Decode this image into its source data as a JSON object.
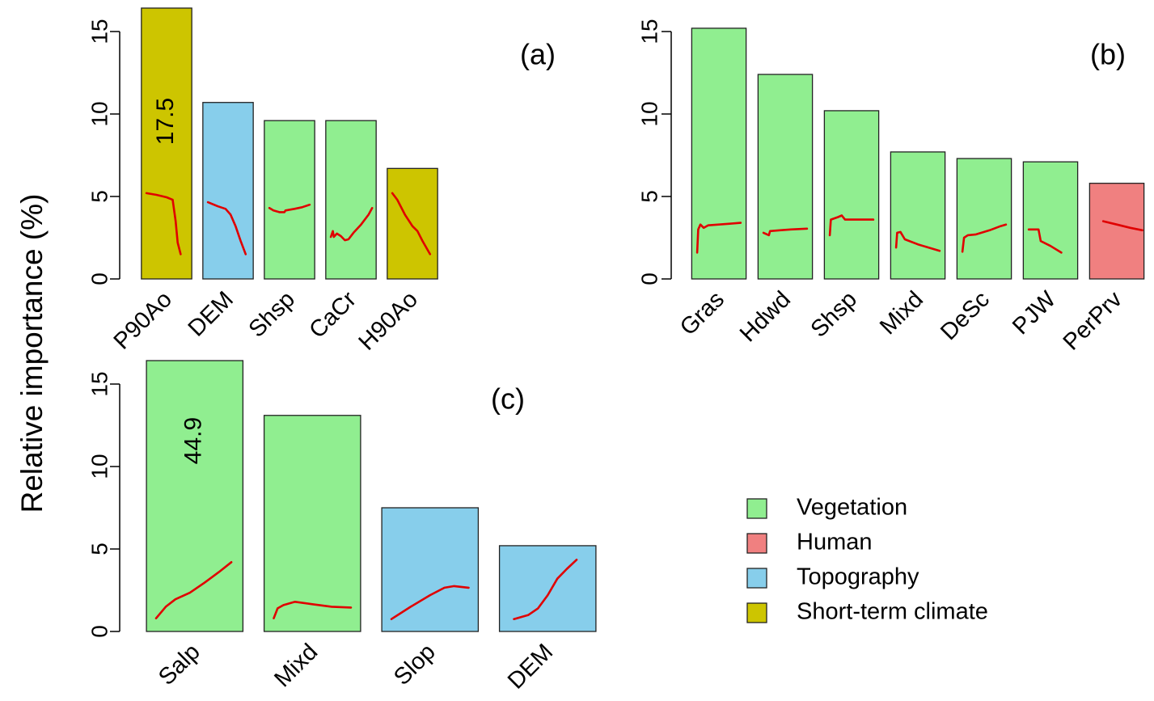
{
  "ylabel": "Relative importance (%)",
  "colors": {
    "Vegetation": "#90EE90",
    "Human": "#F08080",
    "Topography": "#87CEEB",
    "Short-term climate": "#CDC500",
    "response_line": "#E00000"
  },
  "legend": {
    "placement": "bottom-right",
    "items": [
      {
        "label": "Vegetation",
        "color": "#90EE90"
      },
      {
        "label": "Human",
        "color": "#F08080"
      },
      {
        "label": "Topography",
        "color": "#87CEEB"
      },
      {
        "label": "Short-term climate",
        "color": "#CDC500"
      }
    ]
  },
  "chart_data": [
    {
      "type": "bar",
      "panel_label": "(a)",
      "categories": [
        "P90Ao",
        "DEM",
        "Shsp",
        "CaCr",
        "H90Ao"
      ],
      "values": [
        17.5,
        10.7,
        9.6,
        9.6,
        6.7
      ],
      "groups": [
        "Short-term climate",
        "Topography",
        "Vegetation",
        "Vegetation",
        "Short-term climate"
      ],
      "value_labels": [
        "17.5",
        "",
        "",
        "",
        ""
      ],
      "ylim": [
        0,
        16.5
      ],
      "yticks": [
        0,
        5,
        10,
        15
      ],
      "curves": [
        [
          [
            0.1,
            5.2
          ],
          [
            0.3,
            5.1
          ],
          [
            0.5,
            4.95
          ],
          [
            0.62,
            4.8
          ],
          [
            0.68,
            3.5
          ],
          [
            0.72,
            2.2
          ],
          [
            0.78,
            1.5
          ]
        ],
        [
          [
            0.1,
            4.65
          ],
          [
            0.3,
            4.4
          ],
          [
            0.45,
            4.25
          ],
          [
            0.55,
            3.9
          ],
          [
            0.65,
            3.2
          ],
          [
            0.75,
            2.3
          ],
          [
            0.85,
            1.5
          ]
        ],
        [
          [
            0.1,
            4.3
          ],
          [
            0.18,
            4.15
          ],
          [
            0.3,
            4.05
          ],
          [
            0.4,
            4.05
          ],
          [
            0.42,
            4.15
          ],
          [
            0.6,
            4.25
          ],
          [
            0.75,
            4.35
          ],
          [
            0.9,
            4.5
          ]
        ],
        [
          [
            0.1,
            2.55
          ],
          [
            0.14,
            2.9
          ],
          [
            0.16,
            2.55
          ],
          [
            0.22,
            2.75
          ],
          [
            0.3,
            2.6
          ],
          [
            0.38,
            2.35
          ],
          [
            0.45,
            2.4
          ],
          [
            0.55,
            2.8
          ],
          [
            0.7,
            3.3
          ],
          [
            0.85,
            3.9
          ],
          [
            0.92,
            4.3
          ]
        ],
        [
          [
            0.1,
            5.2
          ],
          [
            0.2,
            4.8
          ],
          [
            0.35,
            3.9
          ],
          [
            0.5,
            3.2
          ],
          [
            0.6,
            2.9
          ],
          [
            0.7,
            2.3
          ],
          [
            0.85,
            1.5
          ]
        ]
      ]
    },
    {
      "type": "bar",
      "panel_label": "(b)",
      "categories": [
        "Gras",
        "Hdwd",
        "Shsp",
        "Mixd",
        "DeSc",
        "PJW",
        "PerPrv"
      ],
      "values": [
        15.2,
        12.4,
        10.2,
        7.7,
        7.3,
        7.1,
        5.8
      ],
      "groups": [
        "Vegetation",
        "Vegetation",
        "Vegetation",
        "Vegetation",
        "Vegetation",
        "Vegetation",
        "Human"
      ],
      "value_labels": [
        "",
        "",
        "",
        "",
        "",
        "",
        ""
      ],
      "ylim": [
        0,
        16.5
      ],
      "yticks": [
        0,
        5,
        10,
        15
      ],
      "curves": [
        [
          [
            0.1,
            1.6
          ],
          [
            0.12,
            3.0
          ],
          [
            0.16,
            3.3
          ],
          [
            0.22,
            3.1
          ],
          [
            0.3,
            3.25
          ],
          [
            0.5,
            3.3
          ],
          [
            0.7,
            3.35
          ],
          [
            0.9,
            3.4
          ]
        ],
        [
          [
            0.1,
            2.8
          ],
          [
            0.2,
            2.65
          ],
          [
            0.22,
            2.9
          ],
          [
            0.4,
            2.95
          ],
          [
            0.6,
            3.0
          ],
          [
            0.9,
            3.05
          ]
        ],
        [
          [
            0.1,
            2.65
          ],
          [
            0.12,
            3.6
          ],
          [
            0.25,
            3.75
          ],
          [
            0.32,
            3.85
          ],
          [
            0.38,
            3.6
          ],
          [
            0.55,
            3.6
          ],
          [
            0.9,
            3.6
          ]
        ],
        [
          [
            0.1,
            1.9
          ],
          [
            0.12,
            2.8
          ],
          [
            0.18,
            2.85
          ],
          [
            0.26,
            2.4
          ],
          [
            0.5,
            2.1
          ],
          [
            0.75,
            1.85
          ],
          [
            0.9,
            1.7
          ]
        ],
        [
          [
            0.1,
            1.65
          ],
          [
            0.13,
            2.5
          ],
          [
            0.2,
            2.65
          ],
          [
            0.35,
            2.7
          ],
          [
            0.6,
            2.95
          ],
          [
            0.8,
            3.2
          ],
          [
            0.9,
            3.3
          ]
        ],
        [
          [
            0.1,
            3.0
          ],
          [
            0.28,
            3.0
          ],
          [
            0.32,
            2.3
          ],
          [
            0.5,
            2.0
          ],
          [
            0.7,
            1.6
          ]
        ],
        [
          [
            0.25,
            3.5
          ],
          [
            0.5,
            3.3
          ],
          [
            0.75,
            3.1
          ],
          [
            0.97,
            2.95
          ]
        ]
      ]
    },
    {
      "type": "bar",
      "panel_label": "(c)",
      "categories": [
        "Salp",
        "Mixd",
        "Slop",
        "DEM"
      ],
      "values": [
        44.9,
        13.1,
        7.5,
        5.2
      ],
      "groups": [
        "Vegetation",
        "Vegetation",
        "Topography",
        "Topography"
      ],
      "value_labels": [
        "44.9",
        "",
        "",
        ""
      ],
      "ylim": [
        0,
        16.5
      ],
      "yticks": [
        0,
        5,
        10,
        15
      ],
      "curves": [
        [
          [
            0.1,
            0.8
          ],
          [
            0.2,
            1.5
          ],
          [
            0.3,
            1.95
          ],
          [
            0.45,
            2.35
          ],
          [
            0.6,
            2.95
          ],
          [
            0.75,
            3.6
          ],
          [
            0.88,
            4.2
          ]
        ],
        [
          [
            0.1,
            0.8
          ],
          [
            0.14,
            1.4
          ],
          [
            0.2,
            1.6
          ],
          [
            0.32,
            1.8
          ],
          [
            0.5,
            1.65
          ],
          [
            0.7,
            1.5
          ],
          [
            0.9,
            1.45
          ]
        ],
        [
          [
            0.1,
            0.75
          ],
          [
            0.3,
            1.5
          ],
          [
            0.5,
            2.2
          ],
          [
            0.65,
            2.65
          ],
          [
            0.75,
            2.75
          ],
          [
            0.9,
            2.65
          ]
        ],
        [
          [
            0.15,
            0.75
          ],
          [
            0.3,
            1.0
          ],
          [
            0.4,
            1.4
          ],
          [
            0.5,
            2.2
          ],
          [
            0.6,
            3.2
          ],
          [
            0.7,
            3.8
          ],
          [
            0.8,
            4.35
          ]
        ]
      ]
    }
  ]
}
